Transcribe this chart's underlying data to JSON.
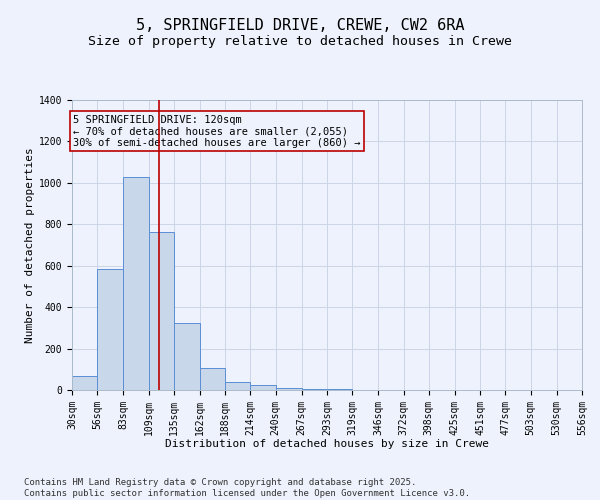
{
  "title1": "5, SPRINGFIELD DRIVE, CREWE, CW2 6RA",
  "title2": "Size of property relative to detached houses in Crewe",
  "xlabel": "Distribution of detached houses by size in Crewe",
  "ylabel": "Number of detached properties",
  "bins": [
    "30sqm",
    "56sqm",
    "83sqm",
    "109sqm",
    "135sqm",
    "162sqm",
    "188sqm",
    "214sqm",
    "240sqm",
    "267sqm",
    "293sqm",
    "319sqm",
    "346sqm",
    "372sqm",
    "398sqm",
    "425sqm",
    "451sqm",
    "477sqm",
    "503sqm",
    "530sqm",
    "556sqm"
  ],
  "bin_edges": [
    30,
    56,
    83,
    109,
    135,
    162,
    188,
    214,
    240,
    267,
    293,
    319,
    346,
    372,
    398,
    425,
    451,
    477,
    503,
    530,
    556
  ],
  "values": [
    68,
    585,
    1030,
    765,
    325,
    105,
    40,
    25,
    10,
    5,
    3,
    2,
    1,
    1,
    1,
    0,
    0,
    0,
    0,
    0
  ],
  "bar_color": "#c8d8ea",
  "bar_edge_color": "#5b8ed6",
  "grid_color": "#ccd5e8",
  "bg_color": "#eef2fc",
  "vline_x": 120,
  "vline_color": "#bb0000",
  "annotation_text": "5 SPRINGFIELD DRIVE: 120sqm\n← 70% of detached houses are smaller (2,055)\n30% of semi-detached houses are larger (860) →",
  "annotation_box_color": "#bb0000",
  "ylim": [
    0,
    1400
  ],
  "yticks": [
    0,
    200,
    400,
    600,
    800,
    1000,
    1200,
    1400
  ],
  "footer": "Contains HM Land Registry data © Crown copyright and database right 2025.\nContains public sector information licensed under the Open Government Licence v3.0.",
  "title1_fontsize": 11,
  "title2_fontsize": 9.5,
  "annotation_fontsize": 7.5,
  "tick_fontsize": 7,
  "axis_label_fontsize": 8,
  "footer_fontsize": 6.5
}
